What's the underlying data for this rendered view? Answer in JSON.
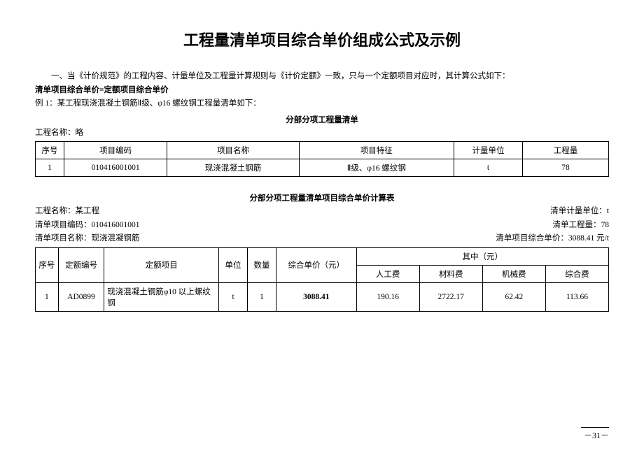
{
  "title": "工程量清单项目综合单价组成公式及示例",
  "intro": {
    "line1": "一、当《计价规范》的工程内容、计量单位及工程量计算规则与《计价定额》一致，只与一个定额项目对应时，其计算公式如下：",
    "formula": "清单项目综合单价=定额项目综合单价",
    "example_label": "例 1：某工程现浇混凝土钢筋Ⅱ级、φ16 螺纹钢工程量清单如下："
  },
  "table1": {
    "heading": "分部分项工程量清单",
    "project_label": "工程名称：略",
    "columns": [
      "序号",
      "项目编码",
      "项目名称",
      "项目特征",
      "计量单位",
      "工程量"
    ],
    "col_widths": [
      "5%",
      "18%",
      "23%",
      "27%",
      "12%",
      "15%"
    ],
    "rows": [
      [
        "1",
        "010416001001",
        "现浇混凝土钢筋",
        "Ⅱ级、φ16 螺纹钢",
        "t",
        "78"
      ]
    ]
  },
  "table2": {
    "heading": "分部分项工程量清单项目综合单价计算表",
    "meta_left": {
      "l1": "工程名称：某工程",
      "l2": "清单项目编码：010416001001",
      "l3": "清单项目名称：现浇混凝钢筋"
    },
    "meta_right": {
      "r1": "清单计量单位：t",
      "r2": "清单工程量：78",
      "r3": "清单项目综合单价：3088.41 元/t"
    },
    "header_row1": [
      "序号",
      "定额编号",
      "定额项目",
      "单位",
      "数量",
      "综合单价（元）",
      "其中（元）"
    ],
    "header_row2": [
      "人工费",
      "材料费",
      "机械费",
      "综合费"
    ],
    "col_widths": [
      "4%",
      "8%",
      "20%",
      "5%",
      "5%",
      "14%",
      "11%",
      "11%",
      "11%",
      "11%"
    ],
    "rows": [
      [
        "1",
        "AD0899",
        "现浇混凝土钢筋φ10 以上螺纹钢",
        "t",
        "1",
        "3088.41",
        "190.16",
        "2722.17",
        "62.42",
        "113.66"
      ]
    ]
  },
  "page_number": "－31－"
}
